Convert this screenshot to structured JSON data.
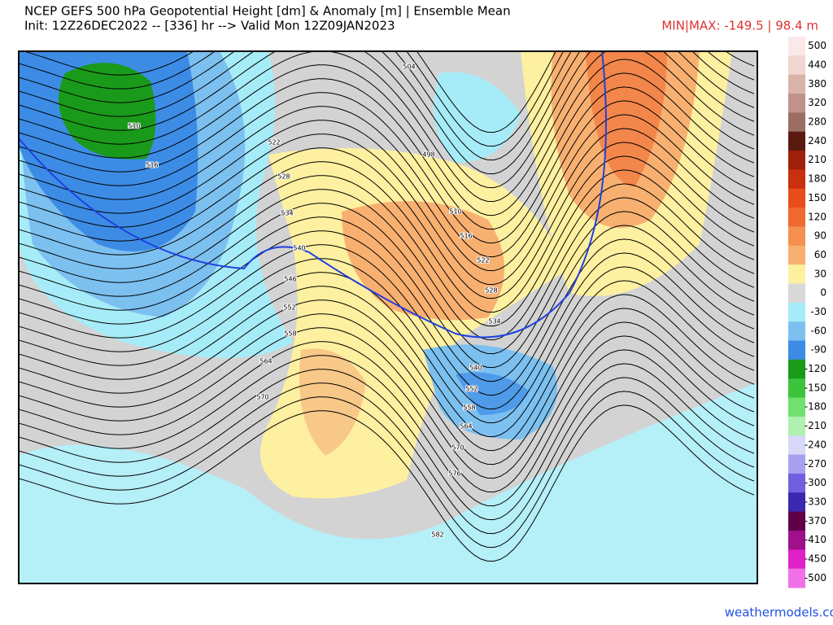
{
  "header": {
    "title": "NCEP GEFS 500 hPa Geopotential Height [dm] & Anomaly [m] | Ensemble Mean",
    "subtitle": "Init: 12Z26DEC2022 -- [336] hr --> Valid Mon 12Z09JAN2023",
    "minmax": "MIN|MAX: -149.5 | 98.4 m"
  },
  "map": {
    "contour_labels": [
      504,
      510,
      516,
      522,
      528,
      534,
      540,
      546,
      552,
      558,
      564,
      570,
      498,
      510,
      516,
      522,
      528,
      534,
      540,
      552,
      558,
      564,
      570,
      576,
      582
    ]
  },
  "colorbar": {
    "labels": [
      "500",
      "440",
      "380",
      "320",
      "280",
      "240",
      "210",
      "180",
      "150",
      "120",
      "90",
      "60",
      "30",
      "0",
      "-30",
      "-60",
      "-90",
      "-120",
      "-150",
      "-180",
      "-210",
      "-240",
      "-270",
      "-300",
      "-330",
      "-370",
      "-410",
      "-450",
      "-500"
    ],
    "colors": [
      "#fbe9e9",
      "#f0d5d0",
      "#d9b3aa",
      "#c0938a",
      "#9b6e64",
      "#5a1a10",
      "#a0200a",
      "#c8300f",
      "#e84c1a",
      "#f06a30",
      "#f59050",
      "#f8b070",
      "#fdf0a0",
      "#d9d9d9",
      "#a6ecf8",
      "#7cc0f0",
      "#3c8ce6",
      "#1a9a1a",
      "#3cc43c",
      "#70e070",
      "#b0f0b0",
      "#d8d8f8",
      "#a8a0f0",
      "#7060e0",
      "#3a28b0",
      "#600048",
      "#a0108a",
      "#e020c8",
      "#f070e8"
    ]
  },
  "footer": {
    "credit": "weathermodels.com"
  }
}
